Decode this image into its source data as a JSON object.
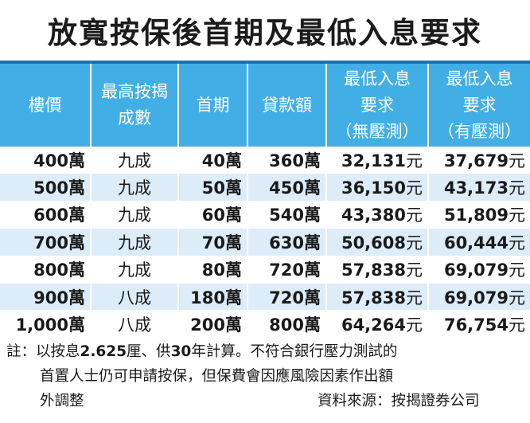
{
  "title": "放寬按保後首期及最低入息要求",
  "table": {
    "headers": [
      [
        "樓價"
      ],
      [
        "最高按揭",
        "成數"
      ],
      [
        "首期"
      ],
      [
        "貸款額"
      ],
      [
        "最低入息",
        "要求",
        "（無壓測）"
      ],
      [
        "最低入息",
        "要求",
        "（有壓測）"
      ]
    ],
    "rows": [
      {
        "price": "400",
        "ratio": "九成",
        "down": "40",
        "loan": "360",
        "inc1": "32,131",
        "inc2": "37,679"
      },
      {
        "price": "500",
        "ratio": "九成",
        "down": "50",
        "loan": "450",
        "inc1": "36,150",
        "inc2": "43,173"
      },
      {
        "price": "600",
        "ratio": "九成",
        "down": "60",
        "loan": "540",
        "inc1": "43,380",
        "inc2": "51,809"
      },
      {
        "price": "700",
        "ratio": "九成",
        "down": "70",
        "loan": "630",
        "inc1": "50,608",
        "inc2": "60,444"
      },
      {
        "price": "800",
        "ratio": "九成",
        "down": "80",
        "loan": "720",
        "inc1": "57,838",
        "inc2": "69,079"
      },
      {
        "price": "900",
        "ratio": "八成",
        "down": "180",
        "loan": "720",
        "inc1": "57,838",
        "inc2": "69,079"
      },
      {
        "price": "1,000",
        "ratio": "八成",
        "down": "200",
        "loan": "800",
        "inc1": "64,264",
        "inc2": "76,754"
      }
    ],
    "unit_wan": "萬",
    "unit_yuan": "元"
  },
  "notes": {
    "line1_a": "註：以按息",
    "line1_rate": "2.625",
    "line1_b": "厘、供",
    "line1_years": "30",
    "line1_c": "年計算。不符合銀行壓力測試的",
    "line2": "首置人士仍可申請按保，但保費會因應風險因素作出額",
    "line3": "外調整",
    "source": "資料來源：按揭證券公司"
  }
}
